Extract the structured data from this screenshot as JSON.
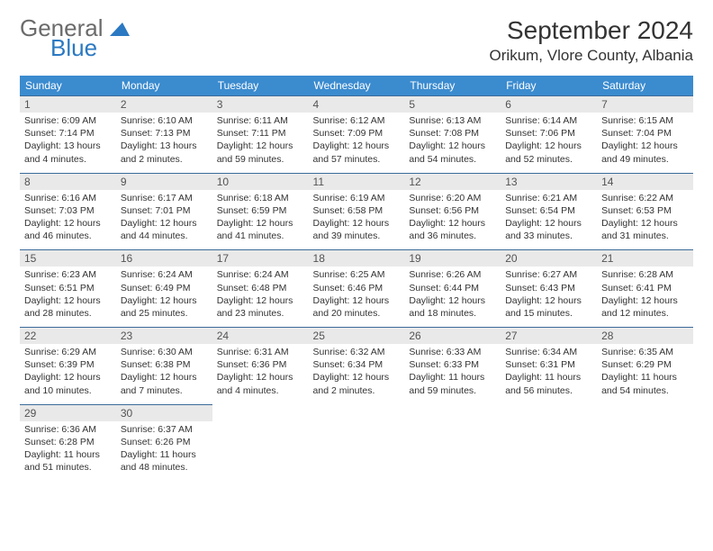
{
  "logo": {
    "general": "General",
    "blue": "Blue"
  },
  "header": {
    "month_title": "September 2024",
    "location": "Orikum, Vlore County, Albania"
  },
  "colors": {
    "header_bg": "#3b8bcf",
    "header_text": "#ffffff",
    "daynum_bg": "#e9e9e9",
    "row_border": "#3b6b9a",
    "logo_gray": "#6b6b6b",
    "logo_blue": "#2b79c2"
  },
  "day_headers": [
    "Sunday",
    "Monday",
    "Tuesday",
    "Wednesday",
    "Thursday",
    "Friday",
    "Saturday"
  ],
  "weeks": [
    [
      {
        "n": "1",
        "sr": "Sunrise: 6:09 AM",
        "ss": "Sunset: 7:14 PM",
        "d1": "Daylight: 13 hours",
        "d2": "and 4 minutes."
      },
      {
        "n": "2",
        "sr": "Sunrise: 6:10 AM",
        "ss": "Sunset: 7:13 PM",
        "d1": "Daylight: 13 hours",
        "d2": "and 2 minutes."
      },
      {
        "n": "3",
        "sr": "Sunrise: 6:11 AM",
        "ss": "Sunset: 7:11 PM",
        "d1": "Daylight: 12 hours",
        "d2": "and 59 minutes."
      },
      {
        "n": "4",
        "sr": "Sunrise: 6:12 AM",
        "ss": "Sunset: 7:09 PM",
        "d1": "Daylight: 12 hours",
        "d2": "and 57 minutes."
      },
      {
        "n": "5",
        "sr": "Sunrise: 6:13 AM",
        "ss": "Sunset: 7:08 PM",
        "d1": "Daylight: 12 hours",
        "d2": "and 54 minutes."
      },
      {
        "n": "6",
        "sr": "Sunrise: 6:14 AM",
        "ss": "Sunset: 7:06 PM",
        "d1": "Daylight: 12 hours",
        "d2": "and 52 minutes."
      },
      {
        "n": "7",
        "sr": "Sunrise: 6:15 AM",
        "ss": "Sunset: 7:04 PM",
        "d1": "Daylight: 12 hours",
        "d2": "and 49 minutes."
      }
    ],
    [
      {
        "n": "8",
        "sr": "Sunrise: 6:16 AM",
        "ss": "Sunset: 7:03 PM",
        "d1": "Daylight: 12 hours",
        "d2": "and 46 minutes."
      },
      {
        "n": "9",
        "sr": "Sunrise: 6:17 AM",
        "ss": "Sunset: 7:01 PM",
        "d1": "Daylight: 12 hours",
        "d2": "and 44 minutes."
      },
      {
        "n": "10",
        "sr": "Sunrise: 6:18 AM",
        "ss": "Sunset: 6:59 PM",
        "d1": "Daylight: 12 hours",
        "d2": "and 41 minutes."
      },
      {
        "n": "11",
        "sr": "Sunrise: 6:19 AM",
        "ss": "Sunset: 6:58 PM",
        "d1": "Daylight: 12 hours",
        "d2": "and 39 minutes."
      },
      {
        "n": "12",
        "sr": "Sunrise: 6:20 AM",
        "ss": "Sunset: 6:56 PM",
        "d1": "Daylight: 12 hours",
        "d2": "and 36 minutes."
      },
      {
        "n": "13",
        "sr": "Sunrise: 6:21 AM",
        "ss": "Sunset: 6:54 PM",
        "d1": "Daylight: 12 hours",
        "d2": "and 33 minutes."
      },
      {
        "n": "14",
        "sr": "Sunrise: 6:22 AM",
        "ss": "Sunset: 6:53 PM",
        "d1": "Daylight: 12 hours",
        "d2": "and 31 minutes."
      }
    ],
    [
      {
        "n": "15",
        "sr": "Sunrise: 6:23 AM",
        "ss": "Sunset: 6:51 PM",
        "d1": "Daylight: 12 hours",
        "d2": "and 28 minutes."
      },
      {
        "n": "16",
        "sr": "Sunrise: 6:24 AM",
        "ss": "Sunset: 6:49 PM",
        "d1": "Daylight: 12 hours",
        "d2": "and 25 minutes."
      },
      {
        "n": "17",
        "sr": "Sunrise: 6:24 AM",
        "ss": "Sunset: 6:48 PM",
        "d1": "Daylight: 12 hours",
        "d2": "and 23 minutes."
      },
      {
        "n": "18",
        "sr": "Sunrise: 6:25 AM",
        "ss": "Sunset: 6:46 PM",
        "d1": "Daylight: 12 hours",
        "d2": "and 20 minutes."
      },
      {
        "n": "19",
        "sr": "Sunrise: 6:26 AM",
        "ss": "Sunset: 6:44 PM",
        "d1": "Daylight: 12 hours",
        "d2": "and 18 minutes."
      },
      {
        "n": "20",
        "sr": "Sunrise: 6:27 AM",
        "ss": "Sunset: 6:43 PM",
        "d1": "Daylight: 12 hours",
        "d2": "and 15 minutes."
      },
      {
        "n": "21",
        "sr": "Sunrise: 6:28 AM",
        "ss": "Sunset: 6:41 PM",
        "d1": "Daylight: 12 hours",
        "d2": "and 12 minutes."
      }
    ],
    [
      {
        "n": "22",
        "sr": "Sunrise: 6:29 AM",
        "ss": "Sunset: 6:39 PM",
        "d1": "Daylight: 12 hours",
        "d2": "and 10 minutes."
      },
      {
        "n": "23",
        "sr": "Sunrise: 6:30 AM",
        "ss": "Sunset: 6:38 PM",
        "d1": "Daylight: 12 hours",
        "d2": "and 7 minutes."
      },
      {
        "n": "24",
        "sr": "Sunrise: 6:31 AM",
        "ss": "Sunset: 6:36 PM",
        "d1": "Daylight: 12 hours",
        "d2": "and 4 minutes."
      },
      {
        "n": "25",
        "sr": "Sunrise: 6:32 AM",
        "ss": "Sunset: 6:34 PM",
        "d1": "Daylight: 12 hours",
        "d2": "and 2 minutes."
      },
      {
        "n": "26",
        "sr": "Sunrise: 6:33 AM",
        "ss": "Sunset: 6:33 PM",
        "d1": "Daylight: 11 hours",
        "d2": "and 59 minutes."
      },
      {
        "n": "27",
        "sr": "Sunrise: 6:34 AM",
        "ss": "Sunset: 6:31 PM",
        "d1": "Daylight: 11 hours",
        "d2": "and 56 minutes."
      },
      {
        "n": "28",
        "sr": "Sunrise: 6:35 AM",
        "ss": "Sunset: 6:29 PM",
        "d1": "Daylight: 11 hours",
        "d2": "and 54 minutes."
      }
    ],
    [
      {
        "n": "29",
        "sr": "Sunrise: 6:36 AM",
        "ss": "Sunset: 6:28 PM",
        "d1": "Daylight: 11 hours",
        "d2": "and 51 minutes."
      },
      {
        "n": "30",
        "sr": "Sunrise: 6:37 AM",
        "ss": "Sunset: 6:26 PM",
        "d1": "Daylight: 11 hours",
        "d2": "and 48 minutes."
      },
      null,
      null,
      null,
      null,
      null
    ]
  ]
}
